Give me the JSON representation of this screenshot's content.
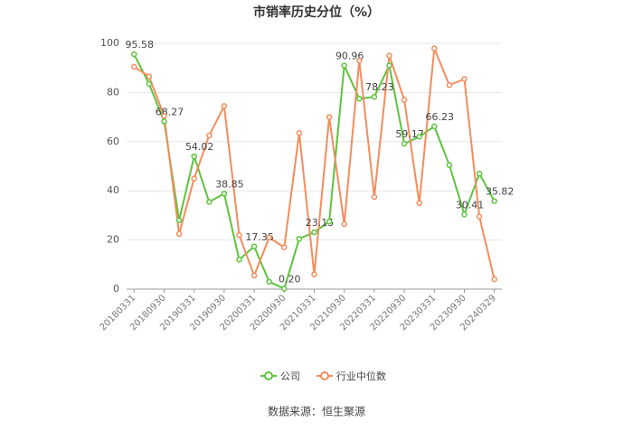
{
  "chart_data": {
    "type": "line",
    "title": "市销率历史分位（%）",
    "source": "数据来源：恒生聚源",
    "categories": [
      "20180331",
      null,
      "20180930",
      null,
      "20190331",
      null,
      "20190930",
      null,
      "20200331",
      null,
      "20200930",
      null,
      "20210331",
      null,
      "20210930",
      null,
      "20220331",
      null,
      "20220930",
      null,
      "20230331",
      null,
      "20230930",
      null,
      "20240329"
    ],
    "series": [
      {
        "name": "公司",
        "color": "#5cc43c",
        "values": [
          95.58,
          83.5,
          68.27,
          28,
          54.02,
          35.5,
          38.85,
          12,
          17.35,
          3,
          0.2,
          20.5,
          23.15,
          27.5,
          90.96,
          77.5,
          78.23,
          91,
          59.17,
          62,
          66.23,
          50.5,
          30.41,
          47,
          35.82
        ],
        "value_labels": [
          "95.58",
          null,
          "68.27",
          null,
          "54.02",
          null,
          "38.85",
          null,
          "17.35",
          null,
          "0.20",
          null,
          "23.15",
          null,
          "90.96",
          null,
          "78.23",
          null,
          "59.17",
          null,
          "66.23",
          null,
          "30.41",
          null,
          "35.82"
        ]
      },
      {
        "name": "行业中位数",
        "color": "#f48c5c",
        "values": [
          90.5,
          86.5,
          70.5,
          22.5,
          45,
          62.5,
          74.5,
          22,
          5.5,
          21,
          17,
          63.5,
          6,
          70,
          26.5,
          93,
          37.5,
          95,
          77,
          35,
          98,
          83,
          85.5,
          29.5,
          4
        ]
      }
    ],
    "ylim": [
      0,
      100
    ],
    "yticks": [
      0,
      20,
      40,
      60,
      80,
      100
    ],
    "grid": true,
    "legend": "bottom"
  }
}
